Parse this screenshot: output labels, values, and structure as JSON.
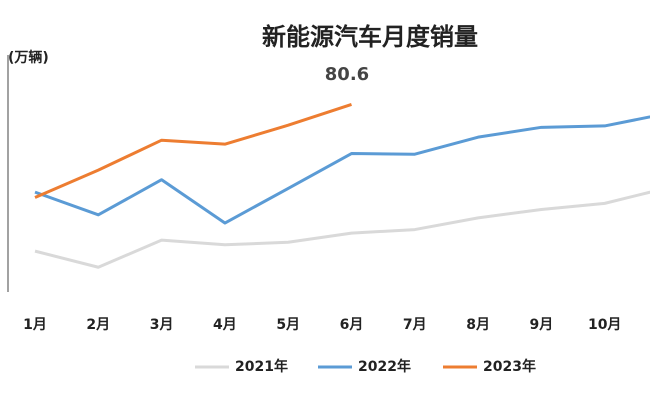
{
  "chart_data": {
    "type": "line",
    "title": "新能源汽车月度销量",
    "y_label": "(万辆)",
    "annotation": "80.6",
    "categories": [
      "1月",
      "2月",
      "3月",
      "4月",
      "5月",
      "6月",
      "7月",
      "8月",
      "9月",
      "10月",
      null
    ],
    "series": [
      {
        "name": "2021年",
        "color": "#d9d9d9",
        "values": [
          17.9,
          11.0,
          22.6,
          20.6,
          21.7,
          25.6,
          27.1,
          32.1,
          35.7,
          38.3,
          45.0
        ]
      },
      {
        "name": "2022年",
        "color": "#5b9bd5",
        "values": [
          43.1,
          33.4,
          48.4,
          29.9,
          44.7,
          59.6,
          59.3,
          66.6,
          70.8,
          71.4,
          76.8
        ]
      },
      {
        "name": "2023年",
        "color": "#ed7d31",
        "values": [
          40.8,
          52.5,
          65.3,
          63.6,
          71.7,
          80.6,
          null,
          null,
          null,
          null,
          null
        ]
      }
    ],
    "ylim": [
      0,
      100
    ]
  }
}
